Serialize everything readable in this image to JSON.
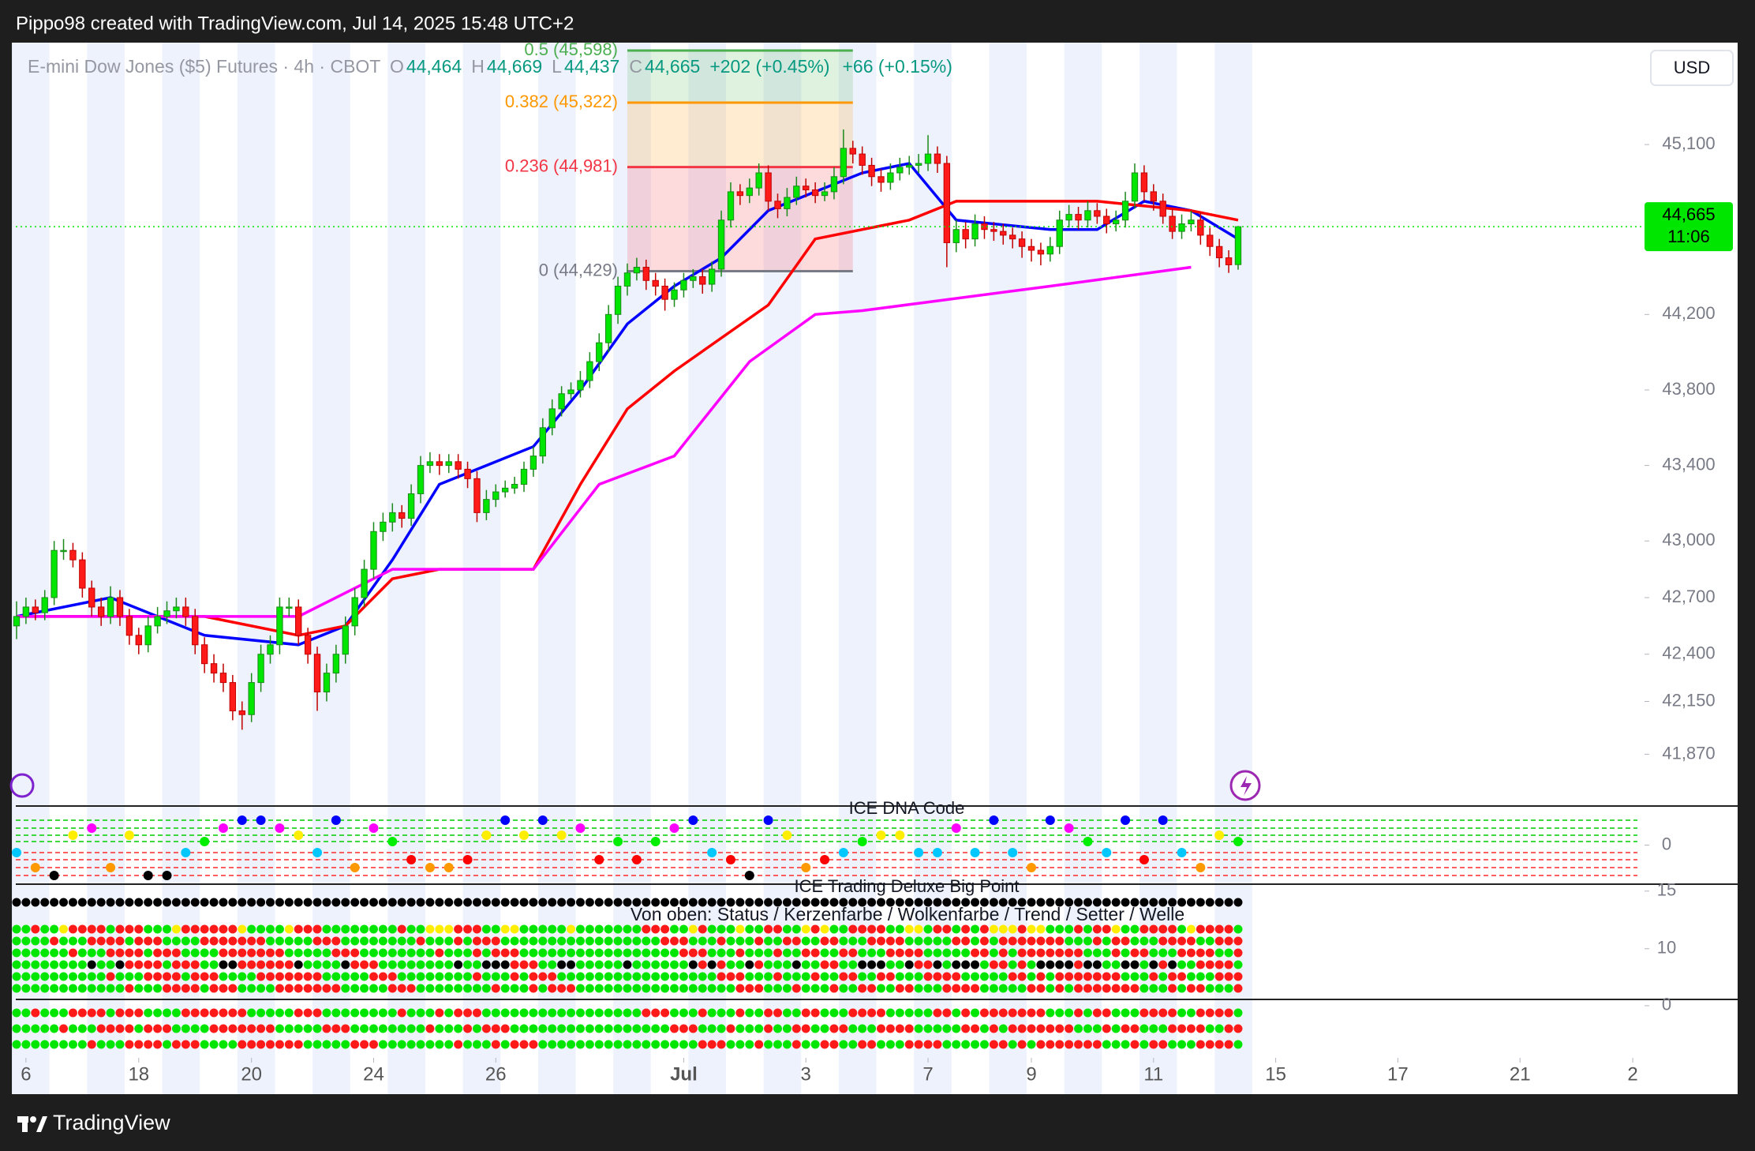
{
  "header": {
    "caption": "Pippo98 created with TradingView.com, Jul 14, 2025 15:48 UTC+2"
  },
  "chart_data": {
    "type": "candlestick",
    "title": "E-mini Dow Jones ($5) Futures · 4h · CBOT",
    "legend": [
      {
        "key": "O",
        "value": "44,464"
      },
      {
        "key": "H",
        "value": "44,669"
      },
      {
        "key": "L",
        "value": "44,437"
      },
      {
        "key": "C",
        "value": "44,665"
      }
    ],
    "change": "+202 (+0.45%)",
    "change_ext": "+66 (+0.15%)",
    "currency": "USD",
    "up_color": "#00e600",
    "down_color": "#ff1a1a",
    "ohlc": [
      [
        42550,
        42680,
        42480,
        42600
      ],
      [
        42600,
        42700,
        42560,
        42650
      ],
      [
        42650,
        42690,
        42580,
        42620
      ],
      [
        42620,
        42740,
        42580,
        42700
      ],
      [
        42700,
        43000,
        42660,
        42950
      ],
      [
        42950,
        43010,
        42900,
        42950
      ],
      [
        42950,
        42990,
        42860,
        42900
      ],
      [
        42900,
        42940,
        42700,
        42750
      ],
      [
        42750,
        42790,
        42600,
        42650
      ],
      [
        42650,
        42700,
        42550,
        42600
      ],
      [
        42600,
        42760,
        42560,
        42700
      ],
      [
        42700,
        42740,
        42550,
        42600
      ],
      [
        42600,
        42640,
        42450,
        42500
      ],
      [
        42500,
        42540,
        42400,
        42450
      ],
      [
        42450,
        42600,
        42410,
        42550
      ],
      [
        42550,
        42650,
        42510,
        42600
      ],
      [
        42600,
        42680,
        42560,
        42630
      ],
      [
        42630,
        42700,
        42590,
        42650
      ],
      [
        42650,
        42700,
        42550,
        42600
      ],
      [
        42600,
        42640,
        42400,
        42450
      ],
      [
        42450,
        42490,
        42300,
        42350
      ],
      [
        42350,
        42400,
        42250,
        42300
      ],
      [
        42300,
        42350,
        42200,
        42250
      ],
      [
        42250,
        42290,
        42050,
        42100
      ],
      [
        42100,
        42150,
        42000,
        42080
      ],
      [
        42080,
        42300,
        42040,
        42250
      ],
      [
        42250,
        42450,
        42200,
        42400
      ],
      [
        42400,
        42500,
        42350,
        42450
      ],
      [
        42450,
        42700,
        42400,
        42650
      ],
      [
        42650,
        42700,
        42600,
        42650
      ],
      [
        42650,
        42690,
        42450,
        42500
      ],
      [
        42500,
        42540,
        42350,
        42400
      ],
      [
        42400,
        42440,
        42100,
        42200
      ],
      [
        42200,
        42350,
        42150,
        42300
      ],
      [
        42300,
        42450,
        42250,
        42400
      ],
      [
        42400,
        42600,
        42350,
        42550
      ],
      [
        42550,
        42750,
        42500,
        42700
      ],
      [
        42700,
        42900,
        42650,
        42850
      ],
      [
        42850,
        43100,
        42800,
        43050
      ],
      [
        43050,
        43150,
        43000,
        43100
      ],
      [
        43100,
        43200,
        43050,
        43150
      ],
      [
        43150,
        43190,
        43070,
        43120
      ],
      [
        43120,
        43300,
        43080,
        43250
      ],
      [
        43250,
        43450,
        43200,
        43400
      ],
      [
        43400,
        43470,
        43360,
        43420
      ],
      [
        43420,
        43460,
        43350,
        43400
      ],
      [
        43400,
        43460,
        43360,
        43420
      ],
      [
        43420,
        43460,
        43330,
        43380
      ],
      [
        43380,
        43420,
        43280,
        43330
      ],
      [
        43330,
        43370,
        43100,
        43150
      ],
      [
        43150,
        43270,
        43110,
        43220
      ],
      [
        43220,
        43300,
        43180,
        43260
      ],
      [
        43260,
        43320,
        43230,
        43280
      ],
      [
        43280,
        43340,
        43250,
        43300
      ],
      [
        43300,
        43420,
        43260,
        43380
      ],
      [
        43380,
        43500,
        43340,
        43450
      ],
      [
        43450,
        43650,
        43410,
        43600
      ],
      [
        43600,
        43750,
        43560,
        43700
      ],
      [
        43700,
        43820,
        43660,
        43780
      ],
      [
        43780,
        43840,
        43750,
        43800
      ],
      [
        43800,
        43900,
        43760,
        43850
      ],
      [
        43850,
        44000,
        43810,
        43950
      ],
      [
        43950,
        44100,
        43900,
        44050
      ],
      [
        44050,
        44250,
        44000,
        44200
      ],
      [
        44200,
        44400,
        44150,
        44350
      ],
      [
        44350,
        44470,
        44300,
        44420
      ],
      [
        44420,
        44500,
        44380,
        44450
      ],
      [
        44450,
        44490,
        44330,
        44380
      ],
      [
        44380,
        44420,
        44300,
        44350
      ],
      [
        44350,
        44390,
        44220,
        44280
      ],
      [
        44280,
        44370,
        44240,
        44330
      ],
      [
        44330,
        44420,
        44290,
        44380
      ],
      [
        44380,
        44440,
        44340,
        44400
      ],
      [
        44400,
        44440,
        44310,
        44360
      ],
      [
        44360,
        44480,
        44320,
        44440
      ],
      [
        44440,
        44750,
        44400,
        44700
      ],
      [
        44700,
        44900,
        44660,
        44850
      ],
      [
        44850,
        44890,
        44780,
        44830
      ],
      [
        44830,
        44920,
        44790,
        44870
      ],
      [
        44870,
        45000,
        44830,
        44950
      ],
      [
        44950,
        44990,
        44750,
        44800
      ],
      [
        44800,
        44840,
        44710,
        44760
      ],
      [
        44760,
        44870,
        44720,
        44820
      ],
      [
        44820,
        44930,
        44780,
        44880
      ],
      [
        44880,
        44920,
        44820,
        44860
      ],
      [
        44860,
        44900,
        44790,
        44830
      ],
      [
        44830,
        44900,
        44800,
        44850
      ],
      [
        44850,
        44980,
        44810,
        44930
      ],
      [
        44930,
        45180,
        44890,
        45080
      ],
      [
        45080,
        45120,
        45000,
        45050
      ],
      [
        45050,
        45090,
        44940,
        44990
      ],
      [
        44990,
        45030,
        44880,
        44930
      ],
      [
        44930,
        44970,
        44850,
        44900
      ],
      [
        44900,
        45000,
        44860,
        44950
      ],
      [
        44950,
        45030,
        44910,
        44980
      ],
      [
        44980,
        45040,
        44940,
        44990
      ],
      [
        44990,
        45050,
        44950,
        45000
      ],
      [
        45000,
        45150,
        44960,
        45050
      ],
      [
        45050,
        45090,
        44950,
        45000
      ],
      [
        45000,
        45040,
        44450,
        44580
      ],
      [
        44580,
        44700,
        44530,
        44650
      ],
      [
        44650,
        44690,
        44550,
        44600
      ],
      [
        44600,
        44730,
        44560,
        44680
      ],
      [
        44680,
        44720,
        44600,
        44650
      ],
      [
        44650,
        44690,
        44590,
        44640
      ],
      [
        44640,
        44680,
        44570,
        44620
      ],
      [
        44620,
        44660,
        44550,
        44600
      ],
      [
        44600,
        44640,
        44500,
        44560
      ],
      [
        44560,
        44600,
        44480,
        44540
      ],
      [
        44540,
        44580,
        44460,
        44520
      ],
      [
        44520,
        44610,
        44480,
        44560
      ],
      [
        44560,
        44750,
        44520,
        44700
      ],
      [
        44700,
        44780,
        44660,
        44730
      ],
      [
        44730,
        44770,
        44650,
        44700
      ],
      [
        44700,
        44800,
        44660,
        44750
      ],
      [
        44750,
        44790,
        44680,
        44720
      ],
      [
        44720,
        44760,
        44630,
        44680
      ],
      [
        44680,
        44750,
        44640,
        44700
      ],
      [
        44700,
        44850,
        44660,
        44800
      ],
      [
        44800,
        45000,
        44760,
        44950
      ],
      [
        44950,
        44990,
        44800,
        44850
      ],
      [
        44850,
        44890,
        44750,
        44800
      ],
      [
        44800,
        44840,
        44680,
        44720
      ],
      [
        44720,
        44760,
        44600,
        44640
      ],
      [
        44640,
        44730,
        44600,
        44680
      ],
      [
        44680,
        44750,
        44640,
        44700
      ],
      [
        44700,
        44740,
        44570,
        44620
      ],
      [
        44620,
        44660,
        44510,
        44560
      ],
      [
        44560,
        44600,
        44450,
        44500
      ],
      [
        44500,
        44540,
        44420,
        44463
      ],
      [
        44464,
        44669,
        44437,
        44665
      ]
    ],
    "xlim": [
      0,
      173
    ],
    "xticks": [
      {
        "value": 1,
        "label": "6"
      },
      {
        "value": 13,
        "label": "18"
      },
      {
        "value": 25,
        "label": "20"
      },
      {
        "value": 38,
        "label": "24"
      },
      {
        "value": 51,
        "label": "26"
      },
      {
        "value": 71,
        "label": "Jul"
      },
      {
        "value": 84,
        "label": "3"
      },
      {
        "value": 97,
        "label": "7"
      },
      {
        "value": 108,
        "label": "9"
      },
      {
        "value": 121,
        "label": "11"
      },
      {
        "value": 134,
        "label": "15"
      },
      {
        "value": 147,
        "label": "17"
      },
      {
        "value": 160,
        "label": "21"
      },
      {
        "value": 172,
        "label": "2"
      }
    ],
    "ylim": [
      41600,
      45640
    ],
    "yticks": [
      {
        "value": 41870,
        "label": "41,870"
      },
      {
        "value": 42150,
        "label": "42,150"
      },
      {
        "value": 42400,
        "label": "42,400"
      },
      {
        "value": 42700,
        "label": "42,700"
      },
      {
        "value": 43000,
        "label": "43,000"
      },
      {
        "value": 43400,
        "label": "43,400"
      },
      {
        "value": 43800,
        "label": "43,800"
      },
      {
        "value": 44200,
        "label": "44,200"
      },
      {
        "value": 45100,
        "label": "45,100"
      }
    ],
    "last_price": {
      "value": 44665,
      "label": "44,665",
      "countdown": "11:06",
      "color": "#00e600"
    },
    "fib_x": [
      65,
      89
    ],
    "fib_levels": [
      {
        "label": "0.5 (45,598)",
        "value": 45598,
        "color": "#4caf50"
      },
      {
        "label": "0.382 (45,322)",
        "value": 45322,
        "color": "#ff9800"
      },
      {
        "label": "0.236 (44,981)",
        "value": 44981,
        "color": "#f23645"
      },
      {
        "label": "0 (44,429)",
        "value": 44429,
        "color": "#787b86"
      }
    ],
    "series": [
      {
        "color": "#0000ff",
        "x": [
          0,
          10,
          20,
          30,
          35,
          40,
          45,
          50,
          55,
          60,
          65,
          70,
          75,
          80,
          85,
          90,
          95,
          100,
          110,
          115,
          120,
          125,
          130
        ],
        "values": [
          42600,
          42700,
          42500,
          42450,
          42550,
          42900,
          43300,
          43400,
          43500,
          43800,
          44150,
          44350,
          44500,
          44750,
          44850,
          44950,
          45000,
          44700,
          44650,
          44650,
          44800,
          44750,
          44600
        ]
      },
      {
        "color": "#ff0000",
        "x": [
          0,
          20,
          30,
          35,
          40,
          45,
          55,
          60,
          65,
          70,
          80,
          85,
          95,
          100,
          115,
          125,
          130
        ],
        "values": [
          42600,
          42600,
          42500,
          42550,
          42800,
          42850,
          42850,
          43300,
          43700,
          43900,
          44250,
          44600,
          44700,
          44800,
          44800,
          44750,
          44700
        ]
      },
      {
        "color": "#ff00ff",
        "x": [
          0,
          30,
          40,
          55,
          62,
          70,
          78,
          85,
          90,
          110,
          125
        ],
        "values": [
          42600,
          42600,
          42850,
          42850,
          43300,
          43450,
          43950,
          44200,
          44220,
          44350,
          44450
        ]
      }
    ],
    "panes": [
      {
        "title": "ICE DNA Code",
        "ylim": [
          -1,
          1
        ],
        "yticks": [
          0
        ]
      },
      {
        "title": "ICE Trading Deluxe Big Point",
        "subtitle": "Von oben: Status / Kerzenfarbe / Wolkenfarbe / Trend / Setter / Welle",
        "ylim": [
          5.6,
          15.6
        ],
        "yticks": [
          15,
          10
        ]
      },
      {
        "ylim": [
          -5,
          0.6
        ],
        "yticks": [
          0
        ]
      }
    ]
  },
  "footer": {
    "brand": "TradingView"
  }
}
